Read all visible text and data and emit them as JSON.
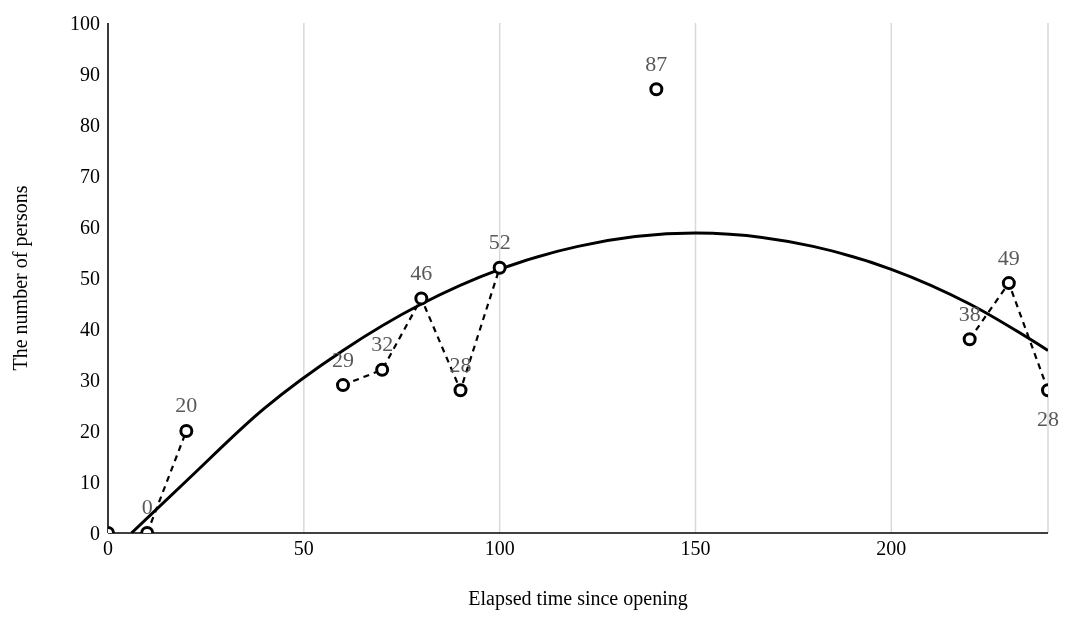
{
  "chart_data": {
    "type": "scatter",
    "xlabel": "Elapsed time since opening",
    "ylabel": "The number of persons",
    "xlim": [
      0,
      240
    ],
    "xticks": [
      0,
      50,
      100,
      150,
      200
    ],
    "ylim": [
      0,
      100
    ],
    "yticks": [
      0,
      10,
      20,
      30,
      40,
      50,
      60,
      70,
      80,
      90,
      100
    ],
    "grid": "x",
    "legend": false,
    "series": [
      {
        "color": "#000000",
        "marker": "circle",
        "x": [
          0,
          10,
          20,
          60,
          70,
          80,
          90,
          100,
          140,
          220,
          230,
          240
        ],
        "values": [
          0,
          0,
          20,
          29,
          32,
          46,
          28,
          52,
          87,
          38,
          49,
          28
        ],
        "value_labels": [
          null,
          "0",
          "20",
          "29",
          "32",
          "46",
          "28",
          "52",
          "87",
          "38",
          "49",
          "28"
        ]
      },
      {
        "type": "line",
        "color": "#000000",
        "line_style": "dashed",
        "marker": "none",
        "x": [
          10,
          20
        ],
        "values": [
          0,
          20
        ]
      },
      {
        "type": "line",
        "color": "#000000",
        "line_style": "dashed",
        "marker": "none",
        "x": [
          60,
          70,
          80,
          90,
          100
        ],
        "values": [
          29,
          32,
          46,
          28,
          52
        ]
      },
      {
        "type": "line",
        "color": "#000000",
        "line_style": "dashed",
        "marker": "none",
        "x": [
          220,
          230,
          240
        ],
        "values": [
          38,
          49,
          28
        ]
      },
      {
        "type": "line",
        "color": "#000000",
        "line_style": "solid",
        "marker": "none",
        "x": [
          6,
          20,
          40,
          60,
          80,
          100,
          120,
          150,
          180,
          200,
          220,
          240
        ],
        "values": [
          0,
          10.2,
          24.5,
          35.8,
          44.9,
          51.7,
          56.2,
          58.8,
          56.2,
          51.7,
          44.9,
          35.8
        ]
      }
    ]
  }
}
